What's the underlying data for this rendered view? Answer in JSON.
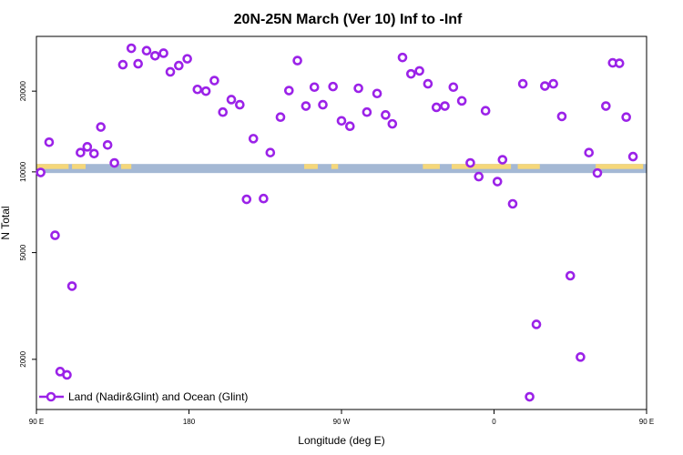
{
  "chart_data": {
    "type": "scatter",
    "title": "20N-25N March (Ver 10)   Inf to -Inf",
    "xlabel": "Longitude (deg E)",
    "ylabel": "N Total",
    "xlim": [
      90,
      450
    ],
    "ylim": [
      1300,
      32000
    ],
    "y_scale": "log",
    "x_ticks": [
      {
        "value": 90,
        "label": "90 E"
      },
      {
        "value": 180,
        "label": "180"
      },
      {
        "value": 270,
        "label": "90 W"
      },
      {
        "value": 360,
        "label": "0"
      },
      {
        "value": 450,
        "label": "90 E"
      }
    ],
    "y_ticks": [
      {
        "value": 2000,
        "label": "2000"
      },
      {
        "value": 5000,
        "label": "5000"
      },
      {
        "value": 10000,
        "label": "10000"
      },
      {
        "value": 20000,
        "label": "20000"
      }
    ],
    "grid": false,
    "legend_position": "bottom-left",
    "background_band": {
      "y_range": [
        9900,
        10700
      ],
      "ocean_color": "#a4b8d4",
      "land_color": "#f5d77a"
    },
    "series": [
      {
        "name": "Land (Nadir&Glint) and Ocean (Glint)",
        "color": "#9b22e8",
        "marker": "circle-open",
        "points": [
          [
            92.5,
            9950
          ],
          [
            97.5,
            12900
          ],
          [
            101,
            5800
          ],
          [
            104,
            1800
          ],
          [
            108,
            1750
          ],
          [
            111,
            3750
          ],
          [
            116,
            11800
          ],
          [
            120,
            12400
          ],
          [
            124,
            11700
          ],
          [
            128,
            14700
          ],
          [
            132,
            12600
          ],
          [
            136,
            10800
          ],
          [
            141,
            25100
          ],
          [
            146,
            28900
          ],
          [
            150,
            25300
          ],
          [
            155,
            28300
          ],
          [
            160,
            27100
          ],
          [
            165,
            27700
          ],
          [
            169,
            23600
          ],
          [
            174,
            24900
          ],
          [
            179,
            26400
          ],
          [
            185,
            20300
          ],
          [
            190,
            20000
          ],
          [
            195,
            21900
          ],
          [
            200,
            16700
          ],
          [
            205,
            18600
          ],
          [
            210,
            17800
          ],
          [
            214,
            7900
          ],
          [
            218,
            13300
          ],
          [
            224,
            7950
          ],
          [
            228,
            11800
          ],
          [
            234,
            16000
          ],
          [
            239,
            20100
          ],
          [
            244,
            26000
          ],
          [
            249,
            17600
          ],
          [
            254,
            20700
          ],
          [
            259,
            17800
          ],
          [
            265,
            20800
          ],
          [
            270,
            15500
          ],
          [
            275,
            14800
          ],
          [
            280,
            20500
          ],
          [
            285,
            16700
          ],
          [
            291,
            19600
          ],
          [
            296,
            16300
          ],
          [
            300,
            15100
          ],
          [
            306,
            26700
          ],
          [
            311,
            23200
          ],
          [
            316,
            23800
          ],
          [
            321,
            21300
          ],
          [
            326,
            17400
          ],
          [
            331,
            17600
          ],
          [
            336,
            20700
          ],
          [
            341,
            18400
          ],
          [
            346,
            10800
          ],
          [
            351,
            9600
          ],
          [
            355,
            16900
          ],
          [
            362,
            9200
          ],
          [
            365,
            11100
          ],
          [
            371,
            7600
          ],
          [
            377,
            21300
          ],
          [
            381,
            1450
          ],
          [
            385,
            2700
          ],
          [
            390,
            20900
          ],
          [
            395,
            21300
          ],
          [
            400,
            16100
          ],
          [
            405,
            4100
          ],
          [
            411,
            2040
          ],
          [
            416,
            11800
          ],
          [
            421,
            9900
          ],
          [
            426,
            17600
          ],
          [
            430,
            25500
          ],
          [
            434,
            25400
          ],
          [
            438,
            16000
          ],
          [
            442,
            11400
          ]
        ]
      }
    ]
  }
}
